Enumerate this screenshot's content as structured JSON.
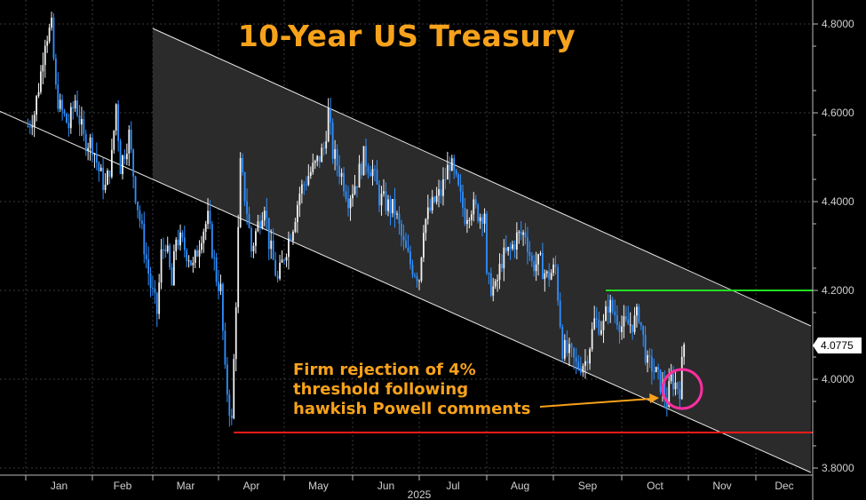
{
  "chart_data": {
    "type": "candlestick",
    "title": "10-Year US Treasury",
    "year_label": "2025",
    "x_ticks": [
      "Jan",
      "Feb",
      "Mar",
      "Apr",
      "May",
      "Jun",
      "Jul",
      "Aug",
      "Sep",
      "Oct",
      "Nov",
      "Dec"
    ],
    "y_ticks": [
      "4.8000",
      "4.6000",
      "4.4000",
      "4.2000",
      "4.0000",
      "3.8000"
    ],
    "ylim": [
      3.8,
      4.8
    ],
    "last_value": "4.0775",
    "annotation": {
      "lines": [
        "Firm rejection of 4%",
        "threshold following",
        "hawkish Powell comments"
      ]
    },
    "resistance_level": 4.2,
    "support_level": 3.88,
    "channel": {
      "upper": {
        "start": [
          "2025-03-01",
          4.79
        ],
        "end": [
          "2025-12-31",
          4.12
        ]
      },
      "lower": {
        "start": [
          "2025-03-01",
          4.45
        ],
        "end": [
          "2025-12-31",
          3.79
        ]
      }
    },
    "closes": [
      [
        "2025-01-02",
        4.57
      ],
      [
        "2025-01-05",
        4.6
      ],
      [
        "2025-01-08",
        4.69
      ],
      [
        "2025-01-10",
        4.77
      ],
      [
        "2025-01-13",
        4.79
      ],
      [
        "2025-01-15",
        4.65
      ],
      [
        "2025-01-17",
        4.61
      ],
      [
        "2025-01-21",
        4.57
      ],
      [
        "2025-01-24",
        4.63
      ],
      [
        "2025-01-28",
        4.54
      ],
      [
        "2025-02-01",
        4.53
      ],
      [
        "2025-02-04",
        4.47
      ],
      [
        "2025-02-07",
        4.43
      ],
      [
        "2025-02-10",
        4.5
      ],
      [
        "2025-02-12",
        4.62
      ],
      [
        "2025-02-14",
        4.48
      ],
      [
        "2025-02-18",
        4.55
      ],
      [
        "2025-02-21",
        4.42
      ],
      [
        "2025-02-25",
        4.3
      ],
      [
        "2025-02-28",
        4.21
      ],
      [
        "2025-03-03",
        4.15
      ],
      [
        "2025-03-05",
        4.28
      ],
      [
        "2025-03-07",
        4.31
      ],
      [
        "2025-03-10",
        4.21
      ],
      [
        "2025-03-12",
        4.32
      ],
      [
        "2025-03-14",
        4.31
      ],
      [
        "2025-03-18",
        4.28
      ],
      [
        "2025-03-20",
        4.25
      ],
      [
        "2025-03-24",
        4.33
      ],
      [
        "2025-03-27",
        4.36
      ],
      [
        "2025-03-31",
        4.23
      ],
      [
        "2025-04-02",
        4.2
      ],
      [
        "2025-04-04",
        4.01
      ],
      [
        "2025-04-07",
        3.9
      ],
      [
        "2025-04-09",
        4.18
      ],
      [
        "2025-04-11",
        4.48
      ],
      [
        "2025-04-14",
        4.38
      ],
      [
        "2025-04-16",
        4.29
      ],
      [
        "2025-04-18",
        4.33
      ],
      [
        "2025-04-22",
        4.4
      ],
      [
        "2025-04-24",
        4.31
      ],
      [
        "2025-04-28",
        4.22
      ],
      [
        "2025-05-01",
        4.28
      ],
      [
        "2025-05-05",
        4.35
      ],
      [
        "2025-05-08",
        4.42
      ],
      [
        "2025-05-12",
        4.46
      ],
      [
        "2025-05-15",
        4.48
      ],
      [
        "2025-05-19",
        4.52
      ],
      [
        "2025-05-21",
        4.6
      ],
      [
        "2025-05-23",
        4.51
      ],
      [
        "2025-05-27",
        4.46
      ],
      [
        "2025-05-30",
        4.41
      ],
      [
        "2025-06-03",
        4.45
      ],
      [
        "2025-06-06",
        4.5
      ],
      [
        "2025-06-10",
        4.47
      ],
      [
        "2025-06-13",
        4.41
      ],
      [
        "2025-06-17",
        4.39
      ],
      [
        "2025-06-20",
        4.38
      ],
      [
        "2025-06-24",
        4.3
      ],
      [
        "2025-06-27",
        4.26
      ],
      [
        "2025-07-01",
        4.23
      ],
      [
        "2025-07-03",
        4.35
      ],
      [
        "2025-07-08",
        4.4
      ],
      [
        "2025-07-11",
        4.42
      ],
      [
        "2025-07-15",
        4.49
      ],
      [
        "2025-07-18",
        4.44
      ],
      [
        "2025-07-22",
        4.37
      ],
      [
        "2025-07-25",
        4.39
      ],
      [
        "2025-07-29",
        4.37
      ],
      [
        "2025-07-31",
        4.38
      ],
      [
        "2025-08-01",
        4.22
      ],
      [
        "2025-08-05",
        4.2
      ],
      [
        "2025-08-08",
        4.27
      ],
      [
        "2025-08-12",
        4.29
      ],
      [
        "2025-08-15",
        4.32
      ],
      [
        "2025-08-19",
        4.33
      ],
      [
        "2025-08-22",
        4.26
      ],
      [
        "2025-08-26",
        4.26
      ],
      [
        "2025-08-29",
        4.23
      ],
      [
        "2025-09-02",
        4.25
      ],
      [
        "2025-09-05",
        4.07
      ],
      [
        "2025-09-09",
        4.05
      ],
      [
        "2025-09-11",
        4.03
      ],
      [
        "2025-09-15",
        4.04
      ],
      [
        "2025-09-17",
        4.08
      ],
      [
        "2025-09-19",
        4.13
      ],
      [
        "2025-09-23",
        4.12
      ],
      [
        "2025-09-25",
        4.17
      ],
      [
        "2025-09-29",
        4.14
      ],
      [
        "2025-10-01",
        4.12
      ],
      [
        "2025-10-03",
        4.12
      ],
      [
        "2025-10-07",
        4.13
      ],
      [
        "2025-10-09",
        4.15
      ],
      [
        "2025-10-13",
        4.03
      ],
      [
        "2025-10-15",
        4.03
      ],
      [
        "2025-10-17",
        4.01
      ],
      [
        "2025-10-20",
        3.98
      ],
      [
        "2025-10-22",
        3.95
      ],
      [
        "2025-10-24",
        4.0
      ],
      [
        "2025-10-28",
        3.98
      ],
      [
        "2025-10-30",
        4.08
      ],
      [
        "2025-10-31",
        4.1
      ]
    ]
  }
}
